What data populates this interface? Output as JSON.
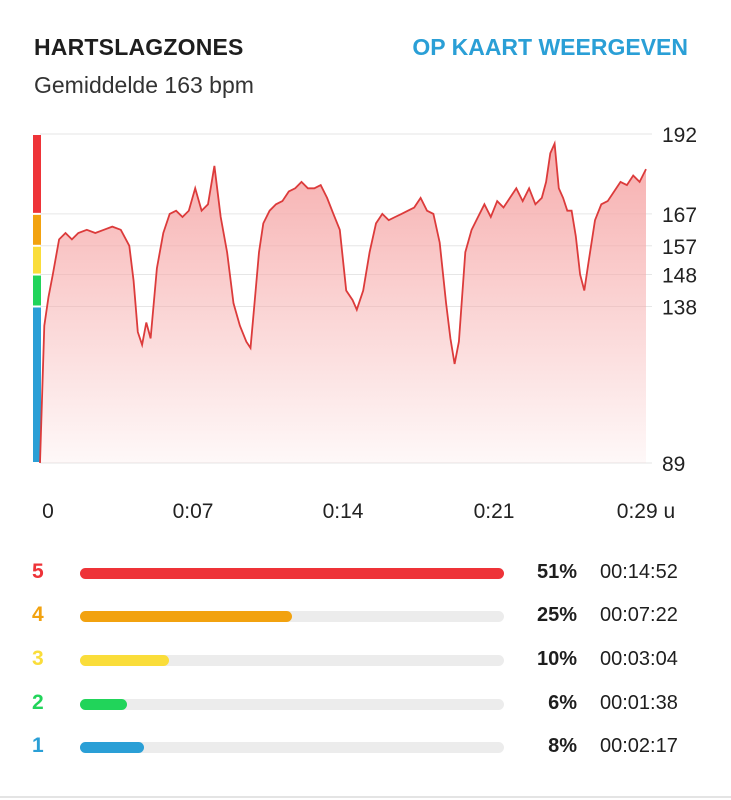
{
  "header": {
    "title": "HARTSLAGZONES",
    "map_link": "OP KAART WEERGEVEN",
    "average": "Gemiddelde 163 bpm"
  },
  "colors": {
    "zone5": "#ee3338",
    "zone4": "#f2a20f",
    "zone3": "#fadd3a",
    "zone2": "#21d45a",
    "zone1": "#2a9fd6",
    "line": "#dc3b3b",
    "fill": "#f6a9a9"
  },
  "chart_data": {
    "type": "area",
    "y_ticks": [
      89,
      138,
      148,
      157,
      167,
      192
    ],
    "ylim": [
      89,
      192
    ],
    "x_ticks": [
      "0",
      "0:07",
      "0:14",
      "0:21",
      "0:29 u"
    ],
    "xlim_minutes": [
      0,
      28.5
    ],
    "zone_band_edges": [
      89,
      138,
      148,
      157,
      167,
      192
    ],
    "series": [
      {
        "x": [
          0,
          0.2,
          0.4,
          0.6,
          0.9,
          1.2,
          1.5,
          1.8,
          2.2,
          2.6,
          3.0,
          3.4,
          3.8,
          4.2,
          4.4,
          4.6,
          4.8,
          5.0,
          5.2,
          5.5,
          5.8,
          6.1,
          6.4,
          6.7,
          7.0,
          7.3,
          7.6,
          7.9,
          8.2,
          8.5,
          8.8,
          9.1,
          9.4,
          9.7,
          9.9,
          10.1,
          10.3,
          10.5,
          10.8,
          11.1,
          11.4,
          11.7,
          12.0,
          12.3,
          12.6,
          12.9,
          13.2,
          13.5,
          13.8,
          14.1,
          14.4,
          14.7,
          14.9,
          15.2,
          15.5,
          15.8,
          16.1,
          16.4,
          16.7,
          17.0,
          17.3,
          17.6,
          17.9,
          18.2,
          18.5,
          18.8,
          19.1,
          19.3,
          19.5,
          19.7,
          20.0,
          20.3,
          20.6,
          20.9,
          21.2,
          21.5,
          21.8,
          22.1,
          22.4,
          22.7,
          23.0,
          23.3,
          23.6,
          23.8,
          24.0,
          24.2,
          24.4,
          24.6,
          24.8,
          25.0,
          25.2,
          25.4,
          25.6,
          25.8,
          26.1,
          26.4,
          26.7,
          27.0,
          27.3,
          27.6,
          27.9,
          28.2,
          28.5
        ],
        "y": [
          89,
          132,
          141,
          148,
          159,
          161,
          159,
          161,
          162,
          161,
          162,
          163,
          162,
          157,
          146,
          130,
          126,
          133,
          128,
          150,
          161,
          167,
          168,
          166,
          168,
          175,
          168,
          170,
          182,
          166,
          155,
          139,
          132,
          127,
          125,
          140,
          155,
          164,
          168,
          170,
          171,
          174,
          175,
          177,
          175,
          175,
          176,
          172,
          167,
          162,
          143,
          140,
          137,
          143,
          155,
          164,
          167,
          165,
          166,
          167,
          168,
          169,
          172,
          168,
          167,
          158,
          139,
          128,
          120,
          127,
          155,
          162,
          166,
          170,
          166,
          171,
          169,
          172,
          175,
          171,
          175,
          170,
          172,
          177,
          186,
          189,
          175,
          172,
          168,
          168,
          160,
          148,
          143,
          152,
          165,
          170,
          171,
          174,
          177,
          176,
          179,
          177,
          181
        ]
      }
    ]
  },
  "zones": [
    {
      "number": "5",
      "pct": "51%",
      "fraction": 1.0,
      "time": "00:14:52",
      "color": "#ee3338"
    },
    {
      "number": "4",
      "pct": "25%",
      "fraction": 0.5,
      "time": "00:07:22",
      "color": "#f2a20f"
    },
    {
      "number": "3",
      "pct": "10%",
      "fraction": 0.21,
      "time": "00:03:04",
      "color": "#fadd3a"
    },
    {
      "number": "2",
      "pct": "6%",
      "fraction": 0.11,
      "time": "00:01:38",
      "color": "#21d45a"
    },
    {
      "number": "1",
      "pct": "8%",
      "fraction": 0.15,
      "time": "00:02:17",
      "color": "#2a9fd6"
    }
  ]
}
